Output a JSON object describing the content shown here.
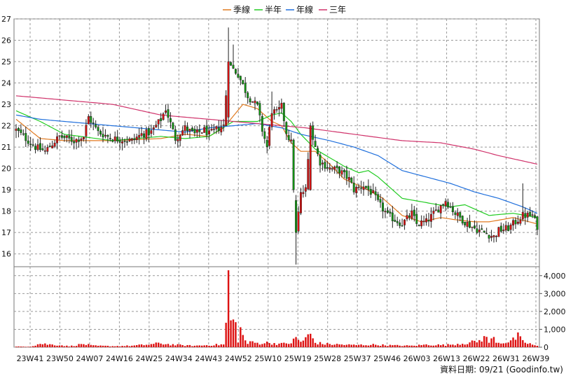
{
  "chart_data": [
    {
      "type": "candlestick",
      "legend": [
        {
          "name": "季線",
          "color": "#e07a20"
        },
        {
          "name": "半年",
          "color": "#22cc22"
        },
        {
          "name": "年線",
          "color": "#1f6fdc"
        },
        {
          "name": "三年",
          "color": "#d0336b"
        }
      ],
      "y_ticks": [
        16,
        17,
        18,
        19,
        20,
        21,
        22,
        23,
        24,
        25,
        26,
        27
      ],
      "ylim": [
        15.4,
        27
      ],
      "x_tick_labels": [
        "23W41",
        "23W50",
        "24W07",
        "24W16",
        "24W25",
        "24W34",
        "24W43",
        "24W52",
        "25W10",
        "25W19",
        "25W28",
        "25W37",
        "25W46",
        "26W03",
        "26W13",
        "26W22",
        "26W31",
        "26W39"
      ],
      "candle_anchors": [
        [
          0,
          21.8
        ],
        [
          8,
          21.0
        ],
        [
          12,
          20.8
        ],
        [
          18,
          21.5
        ],
        [
          24,
          21.3
        ],
        [
          28,
          21.5
        ],
        [
          30,
          22.4
        ],
        [
          34,
          21.7
        ],
        [
          40,
          21.4
        ],
        [
          48,
          21.3
        ],
        [
          52,
          21.6
        ],
        [
          56,
          21.7
        ],
        [
          60,
          22.3
        ],
        [
          62,
          22.8
        ],
        [
          66,
          21.4
        ],
        [
          70,
          21.9
        ],
        [
          74,
          21.6
        ],
        [
          78,
          21.8
        ],
        [
          80,
          21.6
        ],
        [
          84,
          21.9
        ],
        [
          86,
          22.0
        ],
        [
          88,
          24.9
        ],
        [
          92,
          24.4
        ],
        [
          96,
          23.4
        ],
        [
          100,
          22.9
        ],
        [
          102,
          21.8
        ],
        [
          104,
          21.0
        ],
        [
          106,
          22.7
        ],
        [
          108,
          22.6
        ],
        [
          110,
          22.9
        ],
        [
          112,
          21.7
        ],
        [
          114,
          21.2
        ],
        [
          116,
          17.0
        ],
        [
          118,
          18.8
        ],
        [
          120,
          19.0
        ],
        [
          122,
          21.8
        ],
        [
          124,
          21.0
        ],
        [
          126,
          20.3
        ],
        [
          130,
          20.0
        ],
        [
          134,
          19.9
        ],
        [
          138,
          19.5
        ],
        [
          140,
          19.0
        ],
        [
          144,
          19.2
        ],
        [
          148,
          18.8
        ],
        [
          150,
          18.4
        ],
        [
          154,
          17.8
        ],
        [
          160,
          17.4
        ],
        [
          164,
          17.9
        ],
        [
          166,
          17.4
        ],
        [
          170,
          17.5
        ],
        [
          174,
          18.0
        ],
        [
          178,
          18.5
        ],
        [
          182,
          17.9
        ],
        [
          186,
          17.5
        ],
        [
          190,
          17.2
        ],
        [
          194,
          17.0
        ],
        [
          198,
          16.8
        ],
        [
          200,
          17.1
        ],
        [
          204,
          17.2
        ],
        [
          206,
          17.4
        ],
        [
          210,
          17.8
        ],
        [
          214,
          17.8
        ],
        [
          216,
          17.3
        ]
      ],
      "ma_lines": [
        {
          "name": "季線",
          "color": "#e07a20",
          "points": [
            [
              0,
              22.3
            ],
            [
              10,
              21.4
            ],
            [
              20,
              21.3
            ],
            [
              40,
              21.3
            ],
            [
              60,
              21.4
            ],
            [
              70,
              21.6
            ],
            [
              80,
              21.5
            ],
            [
              86,
              21.9
            ],
            [
              94,
              23.0
            ],
            [
              100,
              22.8
            ],
            [
              106,
              22.2
            ],
            [
              110,
              22.0
            ],
            [
              114,
              21.2
            ],
            [
              118,
              20.8
            ],
            [
              124,
              20.8
            ],
            [
              130,
              20.2
            ],
            [
              136,
              19.5
            ],
            [
              144,
              19.1
            ],
            [
              152,
              18.6
            ],
            [
              160,
              17.8
            ],
            [
              168,
              17.5
            ],
            [
              176,
              17.7
            ],
            [
              182,
              17.6
            ],
            [
              190,
              17.5
            ],
            [
              196,
              17.5
            ],
            [
              206,
              17.7
            ],
            [
              216,
              17.4
            ]
          ]
        },
        {
          "name": "半年",
          "color": "#22cc22",
          "points": [
            [
              0,
              22.7
            ],
            [
              10,
              22.2
            ],
            [
              20,
              21.6
            ],
            [
              40,
              21.3
            ],
            [
              60,
              21.5
            ],
            [
              70,
              21.4
            ],
            [
              80,
              21.5
            ],
            [
              90,
              22.2
            ],
            [
              100,
              22.2
            ],
            [
              106,
              22.5
            ],
            [
              110,
              22.6
            ],
            [
              114,
              22.2
            ],
            [
              118,
              21.6
            ],
            [
              124,
              20.9
            ],
            [
              130,
              20.5
            ],
            [
              136,
              20.1
            ],
            [
              142,
              19.8
            ],
            [
              146,
              19.9
            ],
            [
              150,
              19.6
            ],
            [
              160,
              18.6
            ],
            [
              170,
              18.4
            ],
            [
              180,
              18.2
            ],
            [
              186,
              18.3
            ],
            [
              196,
              17.8
            ],
            [
              206,
              17.9
            ],
            [
              216,
              17.7
            ]
          ]
        },
        {
          "name": "年線",
          "color": "#1f6fdc",
          "points": [
            [
              0,
              22.5
            ],
            [
              10,
              22.3
            ],
            [
              20,
              22.2
            ],
            [
              40,
              22.0
            ],
            [
              60,
              21.8
            ],
            [
              70,
              21.7
            ],
            [
              80,
              21.9
            ],
            [
              90,
              22.0
            ],
            [
              100,
              22.1
            ],
            [
              110,
              21.9
            ],
            [
              118,
              21.6
            ],
            [
              130,
              21.3
            ],
            [
              140,
              21.0
            ],
            [
              150,
              20.6
            ],
            [
              160,
              19.9
            ],
            [
              170,
              19.6
            ],
            [
              180,
              19.3
            ],
            [
              190,
              18.9
            ],
            [
              200,
              18.6
            ],
            [
              210,
              18.2
            ],
            [
              216,
              17.9
            ]
          ]
        },
        {
          "name": "三年",
          "color": "#d0336b",
          "points": [
            [
              0,
              23.4
            ],
            [
              20,
              23.2
            ],
            [
              40,
              23.0
            ],
            [
              60,
              22.5
            ],
            [
              80,
              22.3
            ],
            [
              100,
              22.1
            ],
            [
              120,
              21.9
            ],
            [
              140,
              21.6
            ],
            [
              160,
              21.3
            ],
            [
              176,
              21.2
            ],
            [
              190,
              20.9
            ],
            [
              200,
              20.6
            ],
            [
              216,
              20.2
            ]
          ]
        }
      ]
    },
    {
      "type": "bar",
      "y_ticks": [
        0,
        1000,
        2000,
        3000,
        4000
      ],
      "y_tick_labels": [
        "0",
        "1,000",
        "2,000",
        "3,000",
        "4,000"
      ],
      "ylim": [
        0,
        4500
      ],
      "bar_color": "#dd1111",
      "volume_anchors": [
        [
          0,
          30
        ],
        [
          6,
          40
        ],
        [
          10,
          200
        ],
        [
          14,
          150
        ],
        [
          18,
          120
        ],
        [
          22,
          50
        ],
        [
          28,
          180
        ],
        [
          32,
          80
        ],
        [
          40,
          60
        ],
        [
          48,
          80
        ],
        [
          52,
          120
        ],
        [
          56,
          160
        ],
        [
          60,
          220
        ],
        [
          62,
          180
        ],
        [
          66,
          130
        ],
        [
          70,
          100
        ],
        [
          74,
          80
        ],
        [
          80,
          120
        ],
        [
          86,
          150
        ],
        [
          87,
          1200
        ],
        [
          88,
          4300
        ],
        [
          89,
          1500
        ],
        [
          90,
          1550
        ],
        [
          91,
          1400
        ],
        [
          92,
          400
        ],
        [
          93,
          1000
        ],
        [
          94,
          600
        ],
        [
          96,
          200
        ],
        [
          98,
          300
        ],
        [
          100,
          220
        ],
        [
          104,
          250
        ],
        [
          110,
          180
        ],
        [
          114,
          250
        ],
        [
          116,
          500
        ],
        [
          118,
          300
        ],
        [
          122,
          700
        ],
        [
          124,
          250
        ],
        [
          128,
          180
        ],
        [
          134,
          150
        ],
        [
          140,
          120
        ],
        [
          148,
          140
        ],
        [
          156,
          100
        ],
        [
          164,
          80
        ],
        [
          170,
          140
        ],
        [
          178,
          120
        ],
        [
          184,
          200
        ],
        [
          188,
          250
        ],
        [
          192,
          350
        ],
        [
          194,
          600
        ],
        [
          196,
          300
        ],
        [
          198,
          500
        ],
        [
          200,
          250
        ],
        [
          204,
          300
        ],
        [
          206,
          400
        ],
        [
          208,
          600
        ],
        [
          210,
          300
        ],
        [
          214,
          150
        ],
        [
          216,
          60
        ]
      ]
    }
  ],
  "source_label": "資料日期: 09/21 (Goodinfo.tw)"
}
